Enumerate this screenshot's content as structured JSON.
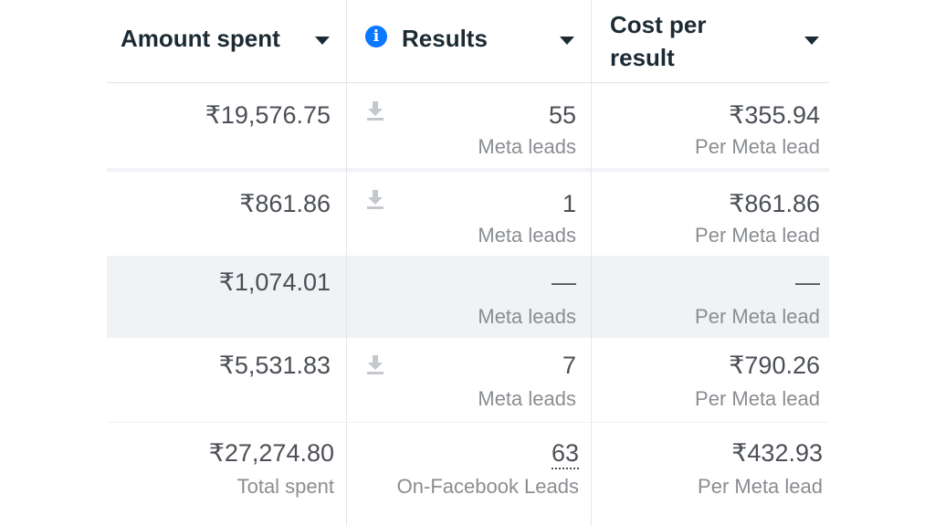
{
  "columns": [
    {
      "label": "Amount spent"
    },
    {
      "label": "Results"
    },
    {
      "label_line1": "Cost per",
      "label_line2": "result"
    }
  ],
  "rows": [
    {
      "amount": "₹19,576.75",
      "results": "55",
      "results_sub": "Meta leads",
      "cost": "₹355.94",
      "cost_sub": "Per Meta lead"
    },
    {
      "amount": "₹861.86",
      "results": "1",
      "results_sub": "Meta leads",
      "cost": "₹861.86",
      "cost_sub": "Per Meta lead"
    },
    {
      "amount": "₹1,074.01",
      "results": "—",
      "results_sub": "Meta leads",
      "cost": "—",
      "cost_sub": "Per Meta lead"
    },
    {
      "amount": "₹5,531.83",
      "results": "7",
      "results_sub": "Meta leads",
      "cost": "₹790.26",
      "cost_sub": "Per Meta lead"
    }
  ],
  "totals": {
    "amount": "₹27,274.80",
    "amount_sub": "Total spent",
    "results": "63",
    "results_sub": "On-Facebook Leads",
    "cost": "₹432.93",
    "cost_sub": "Per Meta lead"
  },
  "icons": {
    "info": "info-icon",
    "download": "download-icon",
    "sort": "caret-down-icon"
  },
  "colors": {
    "accent": "#0a78ff",
    "text": "#1c2b33",
    "muted": "#8a8d91",
    "row_shade": "#f0f2f5"
  }
}
